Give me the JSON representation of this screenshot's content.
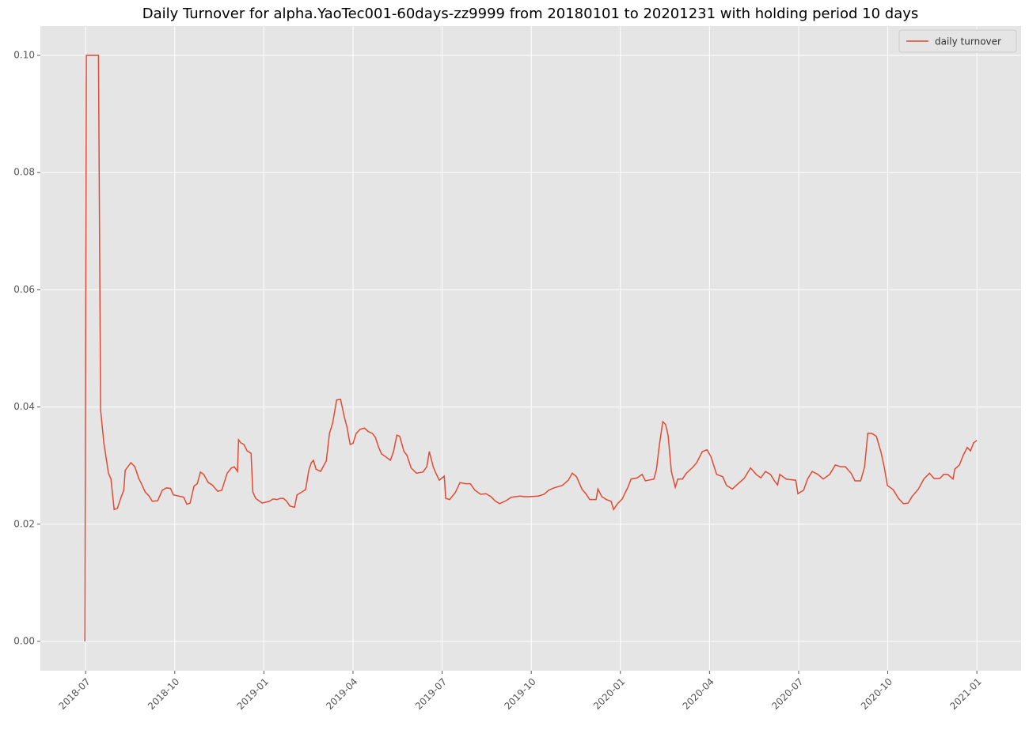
{
  "chart_data": {
    "type": "line",
    "title": "Daily Turnover for alpha.YaoTec001-60days-zz9999 from 20180101 to 20201231 with holding period 10 days",
    "x": [
      2018.498,
      2018.502,
      2018.536,
      2018.542,
      2018.551,
      2018.564,
      2018.571,
      2018.58,
      2018.589,
      2018.6,
      2018.607,
      2018.611,
      2018.627,
      2018.638,
      2018.649,
      2018.655,
      2018.667,
      2018.678,
      2018.687,
      2018.702,
      2018.715,
      2018.727,
      2018.738,
      2018.746,
      2018.775,
      2018.784,
      2018.793,
      2018.804,
      2018.813,
      2018.822,
      2018.831,
      2018.844,
      2018.855,
      2018.862,
      2018.871,
      2018.882,
      2018.897,
      2018.909,
      2018.917,
      2018.926,
      2018.929,
      2018.935,
      2018.944,
      2018.953,
      2018.964,
      2018.969,
      2018.977,
      2018.986,
      2018.995,
      2019.015,
      2019.026,
      2019.037,
      2019.046,
      2019.055,
      2019.064,
      2019.073,
      2019.086,
      2019.093,
      2019.104,
      2019.117,
      2019.126,
      2019.133,
      2019.139,
      2019.146,
      2019.159,
      2019.175,
      2019.184,
      2019.193,
      2019.204,
      2019.215,
      2019.226,
      2019.233,
      2019.242,
      2019.25,
      2019.259,
      2019.27,
      2019.282,
      2019.293,
      2019.304,
      2019.313,
      2019.322,
      2019.33,
      2019.344,
      2019.355,
      2019.364,
      2019.373,
      2019.381,
      2019.393,
      2019.401,
      2019.413,
      2019.428,
      2019.446,
      2019.457,
      2019.464,
      2019.475,
      2019.481,
      2019.492,
      2019.506,
      2019.51,
      2019.521,
      2019.537,
      2019.55,
      2019.566,
      2019.579,
      2019.592,
      2019.608,
      2019.623,
      2019.637,
      2019.648,
      2019.661,
      2019.679,
      2019.694,
      2019.706,
      2019.719,
      2019.73,
      2019.743,
      2019.77,
      2019.786,
      2019.799,
      2019.814,
      2019.837,
      2019.854,
      2019.865,
      2019.877,
      2019.892,
      2019.903,
      2019.914,
      2019.932,
      2019.937,
      2019.948,
      2019.961,
      2019.974,
      2019.981,
      2019.992,
      2020.005,
      2020.021,
      2020.03,
      2020.047,
      2020.061,
      2020.07,
      2020.094,
      2020.101,
      2020.11,
      2020.119,
      2020.127,
      2020.134,
      2020.143,
      2020.154,
      2020.161,
      2020.174,
      2020.185,
      2020.203,
      2020.214,
      2020.23,
      2020.243,
      2020.254,
      2020.27,
      2020.287,
      2020.298,
      2020.314,
      2020.33,
      2020.347,
      2020.365,
      2020.381,
      2020.394,
      2020.407,
      2020.421,
      2020.432,
      2020.441,
      2020.447,
      2020.465,
      2020.492,
      2020.498,
      2020.514,
      2020.525,
      2020.538,
      2020.554,
      2020.569,
      2020.587,
      2020.603,
      2020.618,
      2020.631,
      2020.647,
      2020.658,
      2020.674,
      2020.685,
      2020.694,
      2020.705,
      2020.718,
      2020.731,
      2020.74,
      2020.749,
      2020.765,
      2020.78,
      2020.794,
      2020.807,
      2020.818,
      2020.836,
      2020.851,
      2020.867,
      2020.88,
      2020.896,
      2020.907,
      2020.918,
      2020.933,
      2020.938,
      2020.951,
      2020.962,
      2020.973,
      2020.982,
      2020.991,
      2021.0
    ],
    "series": [
      {
        "name": "daily turnover",
        "color": "#e24a33",
        "values": [
          0,
          0.1,
          0.1,
          0.0395,
          0.0339,
          0.0287,
          0.0277,
          0.0225,
          0.0227,
          0.0247,
          0.0258,
          0.0292,
          0.0305,
          0.0298,
          0.0278,
          0.0271,
          0.0255,
          0.0248,
          0.0239,
          0.024,
          0.0258,
          0.0262,
          0.0261,
          0.025,
          0.0246,
          0.0234,
          0.0236,
          0.0265,
          0.0269,
          0.0289,
          0.0285,
          0.0271,
          0.0267,
          0.0262,
          0.0256,
          0.0258,
          0.0287,
          0.0296,
          0.0298,
          0.029,
          0.0344,
          0.0339,
          0.0336,
          0.0325,
          0.0321,
          0.0255,
          0.0244,
          0.024,
          0.0236,
          0.0239,
          0.0243,
          0.0242,
          0.0244,
          0.0244,
          0.0239,
          0.0231,
          0.0229,
          0.025,
          0.0254,
          0.0259,
          0.0292,
          0.0305,
          0.0309,
          0.0294,
          0.029,
          0.0308,
          0.0355,
          0.0373,
          0.0412,
          0.0413,
          0.0382,
          0.0366,
          0.0336,
          0.0338,
          0.0355,
          0.0362,
          0.0364,
          0.0358,
          0.0355,
          0.0348,
          0.0331,
          0.032,
          0.0314,
          0.0309,
          0.0325,
          0.0352,
          0.035,
          0.0324,
          0.0318,
          0.0296,
          0.0287,
          0.0289,
          0.0298,
          0.0324,
          0.0298,
          0.0289,
          0.0275,
          0.0282,
          0.0244,
          0.0242,
          0.0254,
          0.0271,
          0.0269,
          0.0269,
          0.0258,
          0.0251,
          0.0252,
          0.0247,
          0.024,
          0.0235,
          0.024,
          0.0246,
          0.0247,
          0.0248,
          0.0247,
          0.0247,
          0.0248,
          0.0251,
          0.0258,
          0.0262,
          0.0266,
          0.0275,
          0.0287,
          0.0281,
          0.026,
          0.0252,
          0.0242,
          0.0242,
          0.026,
          0.0247,
          0.0242,
          0.0239,
          0.0225,
          0.0235,
          0.0243,
          0.0263,
          0.0277,
          0.0279,
          0.0285,
          0.0274,
          0.0277,
          0.0293,
          0.0338,
          0.0375,
          0.037,
          0.0351,
          0.029,
          0.0263,
          0.0277,
          0.0277,
          0.0287,
          0.0297,
          0.0305,
          0.0324,
          0.0327,
          0.0315,
          0.0285,
          0.0281,
          0.0266,
          0.026,
          0.0269,
          0.0278,
          0.0296,
          0.0285,
          0.0279,
          0.029,
          0.0285,
          0.0274,
          0.0267,
          0.0285,
          0.0277,
          0.0275,
          0.0252,
          0.0258,
          0.0277,
          0.029,
          0.0285,
          0.0277,
          0.0285,
          0.0301,
          0.0298,
          0.0298,
          0.0287,
          0.0274,
          0.0274,
          0.0298,
          0.0355,
          0.0355,
          0.035,
          0.0323,
          0.0298,
          0.0266,
          0.0259,
          0.0244,
          0.0235,
          0.0236,
          0.0247,
          0.026,
          0.0277,
          0.0287,
          0.0278,
          0.0278,
          0.0285,
          0.0285,
          0.0277,
          0.0294,
          0.0301,
          0.0318,
          0.0331,
          0.0325,
          0.0339,
          0.0343
        ]
      }
    ],
    "xlim": [
      2018.373,
      2021.124
    ],
    "xticks": [
      {
        "value": 2018.5,
        "label": "2018-07"
      },
      {
        "value": 2018.75,
        "label": "2018-10"
      },
      {
        "value": 2019.0,
        "label": "2019-01"
      },
      {
        "value": 2019.25,
        "label": "2019-04"
      },
      {
        "value": 2019.5,
        "label": "2019-07"
      },
      {
        "value": 2019.75,
        "label": "2019-10"
      },
      {
        "value": 2020.0,
        "label": "2020-01"
      },
      {
        "value": 2020.25,
        "label": "2020-04"
      },
      {
        "value": 2020.5,
        "label": "2020-07"
      },
      {
        "value": 2020.75,
        "label": "2020-10"
      },
      {
        "value": 2021.0,
        "label": "2021-01"
      }
    ],
    "ylim": [
      -0.005,
      0.105
    ],
    "yticks": [
      {
        "value": 0,
        "label": "0.00"
      },
      0.02,
      0.04,
      0.06,
      0.08,
      {
        "value": 0.1,
        "label": "0.10"
      }
    ],
    "grid": true,
    "legend": "upper right"
  }
}
